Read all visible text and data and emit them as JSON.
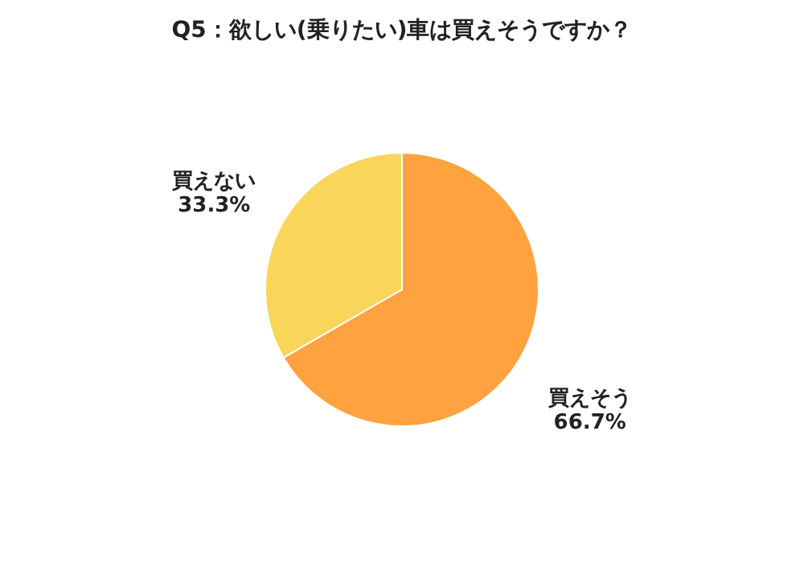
{
  "chart_data": {
    "type": "pie",
    "title": "Q5：欲しい(乗りたい)車は買えそうですか？",
    "categories": [
      "買えそう",
      "買えない"
    ],
    "values": [
      66.7,
      33.3
    ],
    "value_labels": [
      "66.7%",
      "33.3%"
    ],
    "colors": [
      "#ffa23f",
      "#f9d65a"
    ],
    "legend": false
  }
}
